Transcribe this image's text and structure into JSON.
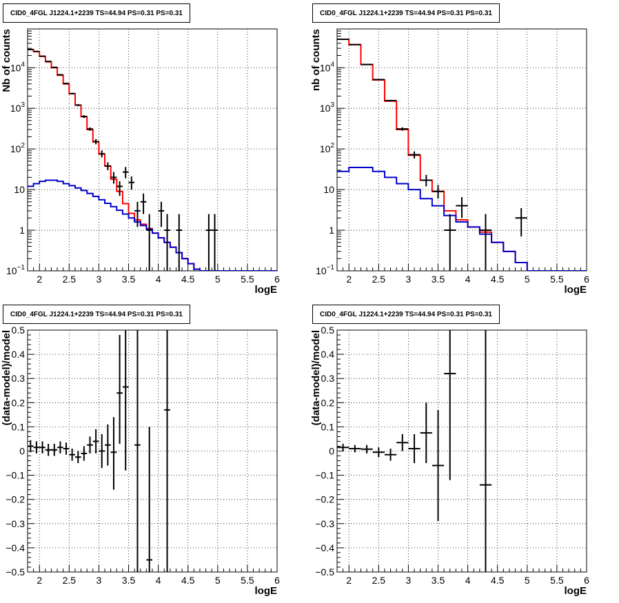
{
  "chart_data": [
    {
      "type": "line",
      "title": "CID0_4FGL J1224.1+2239 TS=44.94 PS=0.31 PS=0.31",
      "xlabel": "logE",
      "ylabel": "Nb of counts",
      "yscale": "log",
      "xlim": [
        1.8,
        6
      ],
      "ylim": [
        0.1,
        90000
      ],
      "xticks": [
        2,
        2.5,
        3,
        3.5,
        4,
        4.5,
        5,
        5.5,
        6
      ],
      "yticks": [
        {
          "v": 0.1,
          "label": "10",
          "sup": "−1"
        },
        {
          "v": 1,
          "label": "1"
        },
        {
          "v": 10,
          "label": "10"
        },
        {
          "v": 100,
          "label": "10",
          "sup": "2"
        },
        {
          "v": 1000,
          "label": "10",
          "sup": "3"
        },
        {
          "v": 10000,
          "label": "10",
          "sup": "4"
        }
      ],
      "grid": true,
      "series": [
        {
          "color": "#ff0000",
          "style": "step",
          "edges": [
            1.8,
            1.9,
            2.0,
            2.1,
            2.2,
            2.3,
            2.4,
            2.5,
            2.6,
            2.7,
            2.8,
            2.9,
            3.0,
            3.1,
            3.2,
            3.3,
            3.4,
            3.5,
            3.6,
            3.7,
            3.8,
            3.9,
            4.0,
            4.1,
            4.2,
            4.3,
            4.4,
            4.5,
            4.6,
            4.7,
            4.8,
            4.9,
            5.0,
            5.1,
            5.2,
            5.3,
            5.4,
            5.5,
            5.6,
            5.7,
            5.8,
            5.9,
            6.0
          ],
          "values": [
            28000,
            25000,
            19000,
            14000,
            10000,
            6500,
            4000,
            2300,
            1200,
            620,
            300,
            150,
            75,
            38,
            18,
            9,
            4.5,
            2.6,
            1.8,
            1.4,
            1.1,
            0.85,
            0.65,
            0.5,
            0.38,
            0.28,
            0.2,
            0.15,
            0.11,
            0.09,
            0.09,
            0.09,
            0.09,
            0.09,
            0.09,
            0.09,
            0.09,
            0.09,
            0.09,
            0.09,
            0.09,
            0.09
          ]
        },
        {
          "color": "#0000cc",
          "style": "step",
          "edges": [
            1.8,
            1.9,
            2.0,
            2.1,
            2.2,
            2.3,
            2.4,
            2.5,
            2.6,
            2.7,
            2.8,
            2.9,
            3.0,
            3.1,
            3.2,
            3.3,
            3.4,
            3.5,
            3.6,
            3.7,
            3.8,
            3.9,
            4.0,
            4.1,
            4.2,
            4.3,
            4.4,
            4.5,
            4.6,
            4.7,
            4.8,
            4.9,
            5.0,
            5.1,
            5.2,
            5.3,
            5.4,
            5.5,
            5.6,
            5.7,
            5.8,
            5.9,
            6.0
          ],
          "values": [
            12,
            14,
            16,
            17,
            17,
            16,
            14,
            12.5,
            11,
            9.5,
            8,
            6.8,
            5.6,
            4.6,
            3.8,
            3.1,
            2.5,
            2.0,
            1.6,
            1.3,
            1.05,
            0.85,
            0.65,
            0.5,
            0.38,
            0.28,
            0.2,
            0.15,
            0.11,
            0.09,
            0.09,
            0.09,
            0.09,
            0.09,
            0.09,
            0.09,
            0.09,
            0.09,
            0.09,
            0.09,
            0.09,
            0.09
          ]
        }
      ],
      "points": [
        {
          "x": 1.85,
          "y": 28000,
          "dx": 0.05,
          "lo": 27700,
          "hi": 28300
        },
        {
          "x": 1.95,
          "y": 25000,
          "dx": 0.05,
          "lo": 24700,
          "hi": 25300
        },
        {
          "x": 2.05,
          "y": 19200,
          "dx": 0.05,
          "lo": 18900,
          "hi": 19500
        },
        {
          "x": 2.15,
          "y": 14300,
          "dx": 0.05,
          "lo": 14100,
          "hi": 14500
        },
        {
          "x": 2.25,
          "y": 10200,
          "dx": 0.05,
          "lo": 10000,
          "hi": 10400
        },
        {
          "x": 2.35,
          "y": 6700,
          "dx": 0.05,
          "lo": 6500,
          "hi": 6900
        },
        {
          "x": 2.45,
          "y": 4100,
          "dx": 0.05,
          "lo": 3950,
          "hi": 4250
        },
        {
          "x": 2.55,
          "y": 2300,
          "dx": 0.05,
          "lo": 2200,
          "hi": 2400
        },
        {
          "x": 2.65,
          "y": 1200,
          "dx": 0.05,
          "lo": 1130,
          "hi": 1270
        },
        {
          "x": 2.75,
          "y": 630,
          "dx": 0.05,
          "lo": 580,
          "hi": 680
        },
        {
          "x": 2.85,
          "y": 310,
          "dx": 0.05,
          "lo": 280,
          "hi": 340
        },
        {
          "x": 2.95,
          "y": 152,
          "dx": 0.05,
          "lo": 130,
          "hi": 175
        },
        {
          "x": 3.05,
          "y": 76,
          "dx": 0.05,
          "lo": 62,
          "hi": 92
        },
        {
          "x": 3.15,
          "y": 38,
          "dx": 0.05,
          "lo": 30,
          "hi": 47
        },
        {
          "x": 3.25,
          "y": 20,
          "dx": 0.05,
          "lo": 14,
          "hi": 27
        },
        {
          "x": 3.35,
          "y": 12,
          "dx": 0.05,
          "lo": 7,
          "hi": 16
        },
        {
          "x": 3.45,
          "y": 27,
          "dx": 0.05,
          "lo": 19,
          "hi": 36
        },
        {
          "x": 3.55,
          "y": 15,
          "dx": 0.05,
          "lo": 10,
          "hi": 21
        },
        {
          "x": 3.65,
          "y": 3,
          "dx": 0.05,
          "lo": 1.2,
          "hi": 5
        },
        {
          "x": 3.75,
          "y": 5,
          "dx": 0.05,
          "lo": 2.5,
          "hi": 8
        },
        {
          "x": 3.85,
          "y": 1,
          "dx": 0.05,
          "lo": 0.1,
          "hi": 2.5
        },
        {
          "x": 4.05,
          "y": 3,
          "dx": 0.05,
          "lo": 1.2,
          "hi": 5
        },
        {
          "x": 4.15,
          "y": 1,
          "dx": 0.05,
          "lo": 0.1,
          "hi": 2.5
        },
        {
          "x": 4.35,
          "y": 1,
          "dx": 0.05,
          "lo": 0.1,
          "hi": 2.5
        },
        {
          "x": 4.85,
          "y": 1,
          "dx": 0.05,
          "lo": 0.1,
          "hi": 2.5
        },
        {
          "x": 4.95,
          "y": 1,
          "dx": 0.05,
          "lo": 0.1,
          "hi": 2.5
        }
      ]
    },
    {
      "type": "line",
      "title": "CID0_4FGL J1224.1+2239 TS=44.94 PS=0.31 PS=0.31",
      "xlabel": "logE",
      "ylabel": "nb of counts",
      "yscale": "log",
      "xlim": [
        1.8,
        6
      ],
      "ylim": [
        0.1,
        90000
      ],
      "xticks": [
        2,
        2.5,
        3,
        3.5,
        4,
        4.5,
        5,
        5.5,
        6
      ],
      "yticks": [
        {
          "v": 0.1,
          "label": "10",
          "sup": "−1"
        },
        {
          "v": 1,
          "label": "1"
        },
        {
          "v": 10,
          "label": "10"
        },
        {
          "v": 100,
          "label": "10",
          "sup": "2"
        },
        {
          "v": 1000,
          "label": "10",
          "sup": "3"
        },
        {
          "v": 10000,
          "label": "10",
          "sup": "4"
        }
      ],
      "grid": true,
      "series": [
        {
          "color": "#ff0000",
          "style": "step",
          "edges": [
            1.8,
            2.0,
            2.2,
            2.4,
            2.6,
            2.8,
            3.0,
            3.2,
            3.4,
            3.6,
            3.8,
            4.0,
            4.2,
            4.4,
            4.6,
            4.8,
            5.0,
            5.2,
            5.4,
            5.6,
            5.8,
            6.0
          ],
          "values": [
            50000,
            37000,
            12000,
            5000,
            1500,
            300,
            70,
            17,
            9,
            3,
            1.8,
            1.2,
            0.9,
            0.5,
            0.3,
            0.16,
            0.09,
            0.09,
            0.09,
            0.09,
            0.09
          ]
        },
        {
          "color": "#0000cc",
          "style": "step",
          "edges": [
            1.8,
            2.0,
            2.2,
            2.4,
            2.6,
            2.8,
            3.0,
            3.2,
            3.4,
            3.6,
            3.8,
            4.0,
            4.2,
            4.4,
            4.6,
            4.8,
            5.0,
            5.2,
            5.4,
            5.6,
            5.8,
            6.0
          ],
          "values": [
            28,
            35,
            35,
            28,
            20,
            14,
            10,
            6,
            4,
            2.3,
            1.6,
            1.2,
            0.8,
            0.5,
            0.3,
            0.16,
            0.09,
            0.09,
            0.09,
            0.09,
            0.09
          ]
        }
      ],
      "points": [
        {
          "x": 1.9,
          "y": 50000,
          "dx": 0.1,
          "lo": 49500,
          "hi": 50500
        },
        {
          "x": 2.1,
          "y": 37000,
          "dx": 0.1,
          "lo": 36600,
          "hi": 37400
        },
        {
          "x": 2.3,
          "y": 12000,
          "dx": 0.1,
          "lo": 11800,
          "hi": 12200
        },
        {
          "x": 2.5,
          "y": 5100,
          "dx": 0.1,
          "lo": 4950,
          "hi": 5250
        },
        {
          "x": 2.7,
          "y": 1550,
          "dx": 0.1,
          "lo": 1480,
          "hi": 1620
        },
        {
          "x": 2.9,
          "y": 310,
          "dx": 0.1,
          "lo": 280,
          "hi": 340
        },
        {
          "x": 3.1,
          "y": 72,
          "dx": 0.1,
          "lo": 58,
          "hi": 87
        },
        {
          "x": 3.3,
          "y": 17,
          "dx": 0.1,
          "lo": 12,
          "hi": 23
        },
        {
          "x": 3.5,
          "y": 9,
          "dx": 0.1,
          "lo": 6,
          "hi": 13
        },
        {
          "x": 3.7,
          "y": 1,
          "dx": 0.1,
          "lo": 0.1,
          "hi": 2.5
        },
        {
          "x": 3.9,
          "y": 4,
          "dx": 0.1,
          "lo": 2,
          "hi": 6.5
        },
        {
          "x": 4.3,
          "y": 1,
          "dx": 0.1,
          "lo": 0.1,
          "hi": 2.5
        },
        {
          "x": 4.9,
          "y": 2,
          "dx": 0.1,
          "lo": 0.7,
          "hi": 3.5
        }
      ]
    },
    {
      "type": "scatter",
      "title": "CID0_4FGL J1224.1+2239 TS=44.94 PS=0.31 PS=0.31",
      "xlabel": "logE",
      "ylabel": "(data-model)/model",
      "xlim": [
        1.8,
        6
      ],
      "ylim": [
        -0.5,
        0.5
      ],
      "xticks": [
        2,
        2.5,
        3,
        3.5,
        4,
        4.5,
        5,
        5.5,
        6
      ],
      "yticks": [
        -0.5,
        -0.4,
        -0.3,
        -0.2,
        -0.1,
        0,
        0.1,
        0.2,
        0.3,
        0.4,
        0.5
      ],
      "grid": true,
      "points": [
        {
          "x": 1.85,
          "y": 0.02,
          "dx": 0.05,
          "lo": -0.005,
          "hi": 0.045
        },
        {
          "x": 1.95,
          "y": 0.015,
          "dx": 0.05,
          "lo": -0.01,
          "hi": 0.04
        },
        {
          "x": 2.05,
          "y": 0.015,
          "dx": 0.05,
          "lo": -0.01,
          "hi": 0.04
        },
        {
          "x": 2.15,
          "y": 0.005,
          "dx": 0.05,
          "lo": -0.02,
          "hi": 0.03
        },
        {
          "x": 2.25,
          "y": 0.005,
          "dx": 0.05,
          "lo": -0.02,
          "hi": 0.03
        },
        {
          "x": 2.35,
          "y": 0.015,
          "dx": 0.05,
          "lo": -0.01,
          "hi": 0.04
        },
        {
          "x": 2.45,
          "y": 0.01,
          "dx": 0.05,
          "lo": -0.015,
          "hi": 0.035
        },
        {
          "x": 2.55,
          "y": -0.015,
          "dx": 0.05,
          "lo": -0.04,
          "hi": 0.01
        },
        {
          "x": 2.65,
          "y": -0.025,
          "dx": 0.05,
          "lo": -0.05,
          "hi": 0.0
        },
        {
          "x": 2.75,
          "y": -0.01,
          "dx": 0.05,
          "lo": -0.04,
          "hi": 0.02
        },
        {
          "x": 2.85,
          "y": 0.025,
          "dx": 0.05,
          "lo": -0.01,
          "hi": 0.06
        },
        {
          "x": 2.95,
          "y": 0.04,
          "dx": 0.05,
          "lo": -0.01,
          "hi": 0.09
        },
        {
          "x": 3.05,
          "y": 0.0,
          "dx": 0.05,
          "lo": -0.07,
          "hi": 0.07
        },
        {
          "x": 3.15,
          "y": 0.025,
          "dx": 0.05,
          "lo": -0.06,
          "hi": 0.11
        },
        {
          "x": 3.25,
          "y": -0.005,
          "dx": 0.05,
          "lo": -0.16,
          "hi": 0.14
        },
        {
          "x": 3.35,
          "y": 0.24,
          "dx": 0.05,
          "lo": 0.03,
          "hi": 0.48
        },
        {
          "x": 3.45,
          "y": 0.265,
          "dx": 0.05,
          "lo": -0.08,
          "hi": 0.5
        },
        {
          "x": 3.65,
          "y": 0.025,
          "dx": 0.05,
          "lo": -0.5,
          "hi": 0.5
        },
        {
          "x": 3.85,
          "y": -0.45,
          "dx": 0.05,
          "lo": -0.5,
          "hi": 0.1
        },
        {
          "x": 4.15,
          "y": 0.17,
          "dx": 0.05,
          "lo": -0.5,
          "hi": 0.5
        }
      ]
    },
    {
      "type": "scatter",
      "title": "CID0_4FGL J1224.1+2239 TS=44.94 PS=0.31 PS=0.31",
      "xlabel": "logE",
      "ylabel": "(data-model)/model",
      "xlim": [
        1.8,
        6
      ],
      "ylim": [
        -0.5,
        0.5
      ],
      "xticks": [
        2,
        2.5,
        3,
        3.5,
        4,
        4.5,
        5,
        5.5,
        6
      ],
      "yticks": [
        -0.5,
        -0.4,
        -0.3,
        -0.2,
        -0.1,
        0,
        0.1,
        0.2,
        0.3,
        0.4,
        0.5
      ],
      "grid": true,
      "points": [
        {
          "x": 1.9,
          "y": 0.015,
          "dx": 0.1,
          "lo": 0.0,
          "hi": 0.03
        },
        {
          "x": 2.1,
          "y": 0.01,
          "dx": 0.1,
          "lo": -0.005,
          "hi": 0.025
        },
        {
          "x": 2.3,
          "y": 0.008,
          "dx": 0.1,
          "lo": -0.01,
          "hi": 0.025
        },
        {
          "x": 2.5,
          "y": -0.005,
          "dx": 0.1,
          "lo": -0.025,
          "hi": 0.015
        },
        {
          "x": 2.7,
          "y": -0.015,
          "dx": 0.1,
          "lo": -0.04,
          "hi": 0.01
        },
        {
          "x": 2.9,
          "y": 0.035,
          "dx": 0.1,
          "lo": 0.0,
          "hi": 0.07
        },
        {
          "x": 3.1,
          "y": 0.01,
          "dx": 0.1,
          "lo": -0.05,
          "hi": 0.07
        },
        {
          "x": 3.3,
          "y": 0.075,
          "dx": 0.1,
          "lo": -0.05,
          "hi": 0.2
        },
        {
          "x": 3.5,
          "y": -0.06,
          "dx": 0.1,
          "lo": -0.29,
          "hi": 0.17
        },
        {
          "x": 3.7,
          "y": 0.32,
          "dx": 0.1,
          "lo": -0.12,
          "hi": 0.5
        },
        {
          "x": 4.3,
          "y": -0.14,
          "dx": 0.1,
          "lo": -0.5,
          "hi": 0.5
        }
      ]
    }
  ]
}
